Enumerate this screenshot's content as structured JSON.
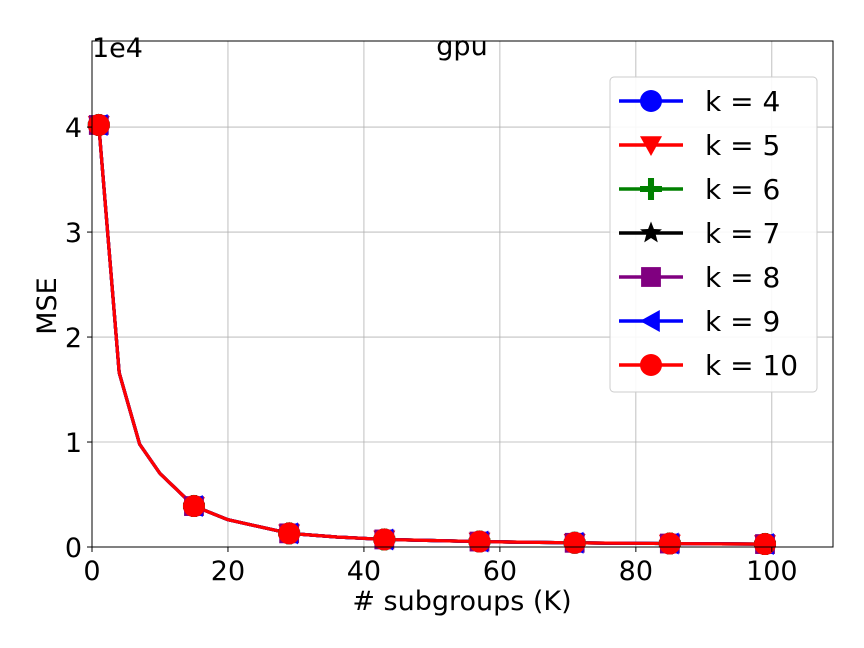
{
  "chart_data": {
    "type": "line",
    "title": "gpu",
    "xlabel": "# subgroups (K)",
    "ylabel": "MSE",
    "y_offset_label": "1e4",
    "xlim": [
      0,
      109
    ],
    "ylim": [
      0,
      4.82
    ],
    "x_ticks": [
      0,
      20,
      40,
      60,
      80,
      100
    ],
    "x_tick_labels": [
      "0",
      "20",
      "40",
      "60",
      "80",
      "100"
    ],
    "y_ticks": [
      0,
      1,
      2,
      3,
      4
    ],
    "y_tick_labels": [
      "0",
      "1",
      "2",
      "3",
      "4"
    ],
    "grid": true,
    "legend_position": "top-right",
    "x": [
      1,
      4,
      7,
      10,
      15,
      20,
      29,
      36,
      43,
      50,
      57,
      64,
      71,
      78,
      85,
      92,
      99
    ],
    "marker_x": [
      1,
      15,
      29,
      43,
      57,
      71,
      85,
      99
    ],
    "series": [
      {
        "name": "k = 4",
        "color": "#0000ff",
        "marker": "circle",
        "values": [
          4.02,
          1.66,
          0.98,
          0.7,
          0.39,
          0.26,
          0.13,
          0.095,
          0.072,
          0.062,
          0.052,
          0.045,
          0.04,
          0.036,
          0.033,
          0.03,
          0.028
        ]
      },
      {
        "name": "k = 5",
        "color": "#ff0000",
        "marker": "triangle-down",
        "values": [
          4.02,
          1.66,
          0.98,
          0.7,
          0.39,
          0.26,
          0.13,
          0.095,
          0.072,
          0.062,
          0.052,
          0.045,
          0.04,
          0.036,
          0.033,
          0.03,
          0.028
        ]
      },
      {
        "name": "k = 6",
        "color": "#008000",
        "marker": "plus",
        "values": [
          4.02,
          1.66,
          0.98,
          0.7,
          0.39,
          0.26,
          0.13,
          0.095,
          0.072,
          0.062,
          0.052,
          0.045,
          0.04,
          0.036,
          0.033,
          0.03,
          0.028
        ]
      },
      {
        "name": "k = 7",
        "color": "#000000",
        "marker": "star",
        "values": [
          4.02,
          1.66,
          0.98,
          0.7,
          0.39,
          0.26,
          0.13,
          0.095,
          0.072,
          0.062,
          0.052,
          0.045,
          0.04,
          0.036,
          0.033,
          0.03,
          0.028
        ]
      },
      {
        "name": "k = 8",
        "color": "#800080",
        "marker": "square",
        "values": [
          4.02,
          1.66,
          0.98,
          0.7,
          0.39,
          0.26,
          0.13,
          0.095,
          0.072,
          0.062,
          0.052,
          0.045,
          0.04,
          0.036,
          0.033,
          0.03,
          0.028
        ]
      },
      {
        "name": "k = 9",
        "color": "#0000ff",
        "marker": "triangle-left",
        "values": [
          4.02,
          1.66,
          0.98,
          0.7,
          0.39,
          0.26,
          0.13,
          0.095,
          0.072,
          0.062,
          0.052,
          0.045,
          0.04,
          0.036,
          0.033,
          0.03,
          0.028
        ]
      },
      {
        "name": "k = 10",
        "color": "#ff0000",
        "marker": "circle",
        "values": [
          4.02,
          1.66,
          0.98,
          0.7,
          0.39,
          0.26,
          0.13,
          0.095,
          0.072,
          0.062,
          0.052,
          0.045,
          0.04,
          0.036,
          0.033,
          0.03,
          0.028
        ]
      }
    ]
  }
}
